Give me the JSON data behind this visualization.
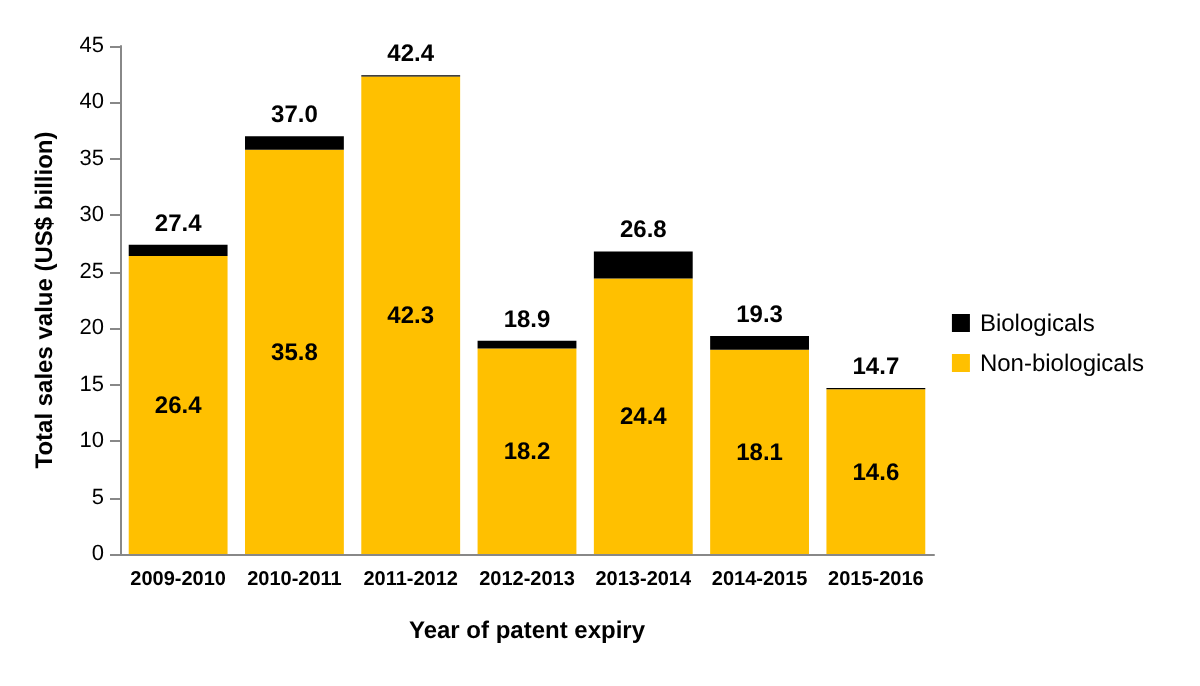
{
  "chart_data": {
    "type": "bar",
    "stacked": true,
    "xlabel": "Year of patent expiry",
    "ylabel": "Total sales value (US$ billion)",
    "categories": [
      "2009-2010",
      "2010-2011",
      "2011-2012",
      "2012-2013",
      "2013-2014",
      "2014-2015",
      "2015-2016"
    ],
    "series": [
      {
        "name": "Non-biologicals",
        "color": "#ffc000",
        "values": [
          26.4,
          35.8,
          42.3,
          18.2,
          24.4,
          18.1,
          14.6
        ],
        "value_labels": [
          "26.4",
          "35.8",
          "42.3",
          "18.2",
          "24.4",
          "18.1",
          "14.6"
        ]
      },
      {
        "name": "Biologicals",
        "color": "#000000",
        "values": [
          1.0,
          1.2,
          0.1,
          0.7,
          2.4,
          1.2,
          0.1
        ]
      }
    ],
    "totals": [
      "27.4",
      "37.0",
      "42.4",
      "18.9",
      "26.8",
      "19.3",
      "14.7"
    ],
    "ylim": [
      0,
      45
    ],
    "yticks": [
      0,
      5,
      10,
      15,
      20,
      25,
      30,
      35,
      40,
      45
    ],
    "grid": false,
    "legend": "right"
  }
}
